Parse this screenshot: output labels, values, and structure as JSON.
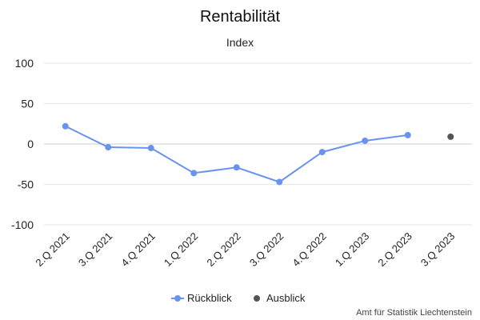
{
  "chart_data": {
    "type": "line",
    "title": "Rentabilität",
    "subtitle": "Index",
    "xlabel": "",
    "ylabel": "",
    "categories": [
      "2.Q 2021",
      "3.Q 2021",
      "4.Q 2021",
      "1.Q 2022",
      "2.Q 2022",
      "3.Q 2022",
      "4.Q 2022",
      "1.Q 2023",
      "2.Q 2023",
      "3.Q 2023"
    ],
    "ylim": [
      -100,
      100
    ],
    "yticks": [
      100,
      50,
      0,
      -50,
      -100
    ],
    "grid": true,
    "legend_position": "bottom-center",
    "series": [
      {
        "name": "Rückblick",
        "color": "#6a93f0",
        "values": [
          22,
          -4,
          -5,
          -36,
          -29,
          -47,
          -10,
          4,
          11,
          null
        ]
      },
      {
        "name": "Ausblick",
        "color": "#555555",
        "values": [
          null,
          null,
          null,
          null,
          null,
          null,
          null,
          null,
          null,
          9
        ]
      }
    ]
  },
  "credit": "Amt für Statistik Liechtenstein"
}
